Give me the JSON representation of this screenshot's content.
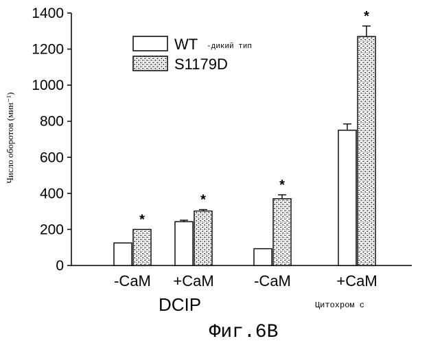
{
  "chart_data": {
    "type": "bar",
    "ylabel": "Число оборотов (мин⁻¹)",
    "ylim": [
      0,
      1400
    ],
    "yticks": [
      "0",
      "200",
      "400",
      "600",
      "800",
      "1000",
      "1200",
      "1400"
    ],
    "categories": [
      "-CaM",
      "+CaM",
      "-CaM",
      "+CaM"
    ],
    "groups": [
      {
        "label": "DCIP"
      },
      {
        "label": "Цитохром с"
      }
    ],
    "series": [
      {
        "name": "WT",
        "sublabel": "-дикий тип",
        "pattern": "plain",
        "values": [
          125,
          243,
          93,
          750
        ],
        "errors": [
          0,
          8,
          0,
          35
        ]
      },
      {
        "name": "S1179D",
        "pattern": "dotted",
        "values": [
          200,
          302,
          370,
          1270
        ],
        "errors": [
          0,
          8,
          22,
          58
        ]
      }
    ],
    "significance_marker": "*",
    "legend_position": "top-left"
  },
  "caption": "Фиг.6B"
}
